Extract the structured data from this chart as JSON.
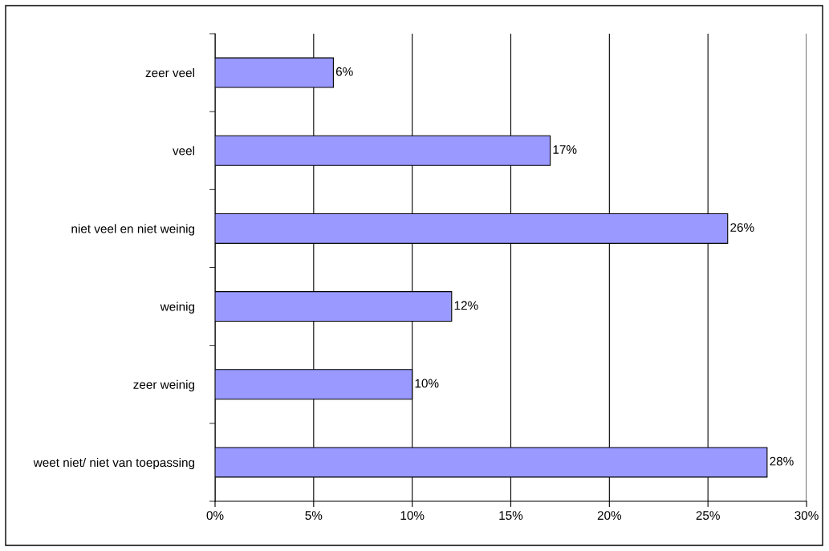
{
  "chart_data": {
    "type": "bar",
    "orientation": "horizontal",
    "categories": [
      "zeer veel",
      "veel",
      "niet veel en niet weinig",
      "weinig",
      "zeer weinig",
      "weet niet/ niet van toepassing"
    ],
    "values": [
      6,
      17,
      26,
      12,
      10,
      28
    ],
    "value_labels": [
      "6%",
      "17%",
      "26%",
      "12%",
      "10%",
      "28%"
    ],
    "color": "#9999ff",
    "xlim": [
      0,
      30
    ],
    "xticks": [
      {
        "value": 0,
        "label": "0%"
      },
      {
        "value": 5,
        "label": "5%"
      },
      {
        "value": 10,
        "label": "10%"
      },
      {
        "value": 15,
        "label": "15%"
      },
      {
        "value": 20,
        "label": "20%"
      },
      {
        "value": 25,
        "label": "25%"
      },
      {
        "value": 30,
        "label": "30%"
      }
    ],
    "grid": "x"
  }
}
